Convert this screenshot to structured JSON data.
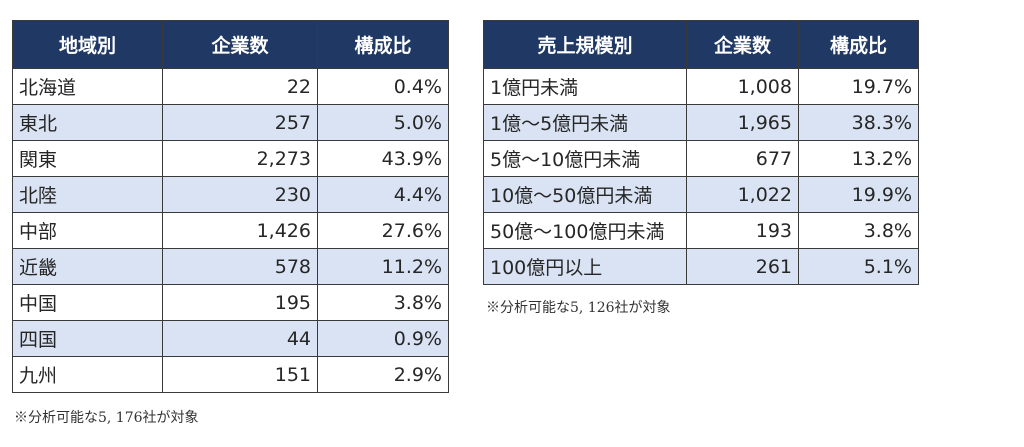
{
  "region_table": {
    "headers": [
      "地域別",
      "企業数",
      "構成比"
    ],
    "rows": [
      [
        "北海道",
        "22",
        "0.4%"
      ],
      [
        "東北",
        "257",
        "5.0%"
      ],
      [
        "関東",
        "2,273",
        "43.9%"
      ],
      [
        "北陸",
        "230",
        "4.4%"
      ],
      [
        "中部",
        "1,426",
        "27.6%"
      ],
      [
        "近畿",
        "578",
        "11.2%"
      ],
      [
        "中国",
        "195",
        "3.8%"
      ],
      [
        "四国",
        "44",
        "0.9%"
      ],
      [
        "九州",
        "151",
        "2.9%"
      ]
    ],
    "note": "※分析可能な5, 176社が対象"
  },
  "size_table": {
    "headers": [
      "売上規模別",
      "企業数",
      "構成比"
    ],
    "rows": [
      [
        "1億円未満",
        "1,008",
        "19.7%"
      ],
      [
        "1億～5億円未満",
        "1,965",
        "38.3%"
      ],
      [
        "5億～10億円未満",
        "677",
        "13.2%"
      ],
      [
        "10億～50億円未満",
        "1,022",
        "19.9%"
      ],
      [
        "50億～100億円未満",
        "193",
        "3.8%"
      ],
      [
        "100億円以上",
        "261",
        "5.1%"
      ]
    ],
    "note": "※分析可能な5, 126社が対象"
  },
  "colors": {
    "header_bg": "#1f3864",
    "header_text": "#ffffff",
    "stripe_bg": "#dae3f3",
    "border": "#3a3a3a"
  }
}
